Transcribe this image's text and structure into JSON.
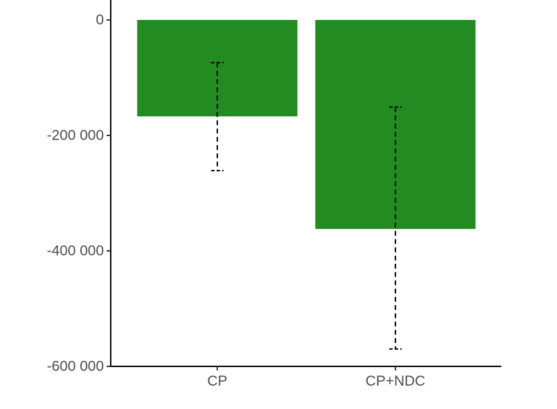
{
  "chart_data": {
    "type": "bar",
    "categories": [
      "CP",
      "CP+NDC"
    ],
    "values": [
      -167000,
      -362000
    ],
    "error_bars": [
      {
        "low": -261000,
        "high": -74000
      },
      {
        "low": -570000,
        "high": -151000
      }
    ],
    "ylim": [
      -600000,
      20000
    ],
    "yticks": [
      0,
      -200000,
      -400000,
      -600000
    ],
    "ytick_labels": [
      "0",
      "-200 000",
      "-400 000",
      "-600 000"
    ],
    "xtick_labels": [
      "CP",
      "CP+NDC"
    ],
    "bar_color": "#228b22",
    "error_bar_style": "dashed",
    "grid": false,
    "legend": "none",
    "title": "",
    "xlabel": "",
    "ylabel": ""
  }
}
